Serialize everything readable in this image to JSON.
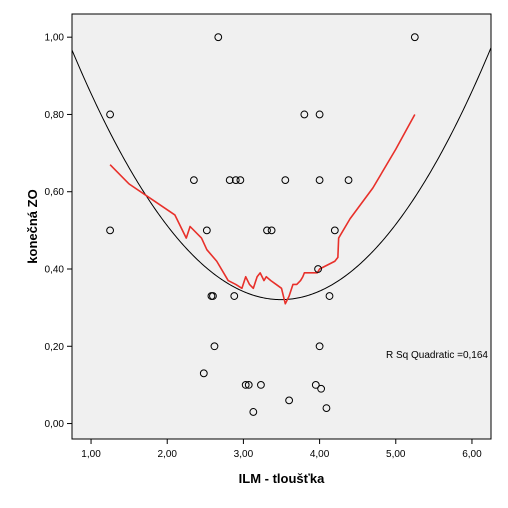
{
  "chart_data": {
    "type": "scatter",
    "xlabel": "ILM - tloušťka",
    "ylabel": "konečná ZO",
    "xlim": [
      0.75,
      6.25
    ],
    "ylim": [
      -0.04,
      1.06
    ],
    "x_ticks": [
      1,
      2,
      3,
      4,
      5,
      6
    ],
    "y_ticks": [
      0,
      0.2,
      0.4,
      0.6,
      0.8,
      1.0
    ],
    "x_tick_labels": [
      "1,00",
      "2,00",
      "3,00",
      "4,00",
      "5,00",
      "6,00"
    ],
    "y_tick_labels": [
      "0,00",
      "0,20",
      "0,40",
      "0,60",
      "0,80",
      "1,00"
    ],
    "annotation": "R Sq Quadratic =0,164",
    "grid": false,
    "background_color": "#f0f0f0",
    "points": [
      [
        1.25,
        0.8
      ],
      [
        1.25,
        0.5
      ],
      [
        2.35,
        0.63
      ],
      [
        2.48,
        0.13
      ],
      [
        2.52,
        0.5
      ],
      [
        2.58,
        0.33
      ],
      [
        2.6,
        0.33
      ],
      [
        2.62,
        0.2
      ],
      [
        2.67,
        1.0
      ],
      [
        2.82,
        0.63
      ],
      [
        2.88,
        0.33
      ],
      [
        2.9,
        0.63
      ],
      [
        2.96,
        0.63
      ],
      [
        3.03,
        0.1
      ],
      [
        3.07,
        0.1
      ],
      [
        3.13,
        0.03
      ],
      [
        3.23,
        0.1
      ],
      [
        3.31,
        0.5
      ],
      [
        3.37,
        0.5
      ],
      [
        3.55,
        0.63
      ],
      [
        3.6,
        0.06
      ],
      [
        3.8,
        0.8
      ],
      [
        3.95,
        0.1
      ],
      [
        3.98,
        0.4
      ],
      [
        4.0,
        0.2
      ],
      [
        4.0,
        0.63
      ],
      [
        4.0,
        0.8
      ],
      [
        4.02,
        0.09
      ],
      [
        4.09,
        0.04
      ],
      [
        4.13,
        0.33
      ],
      [
        4.2,
        0.5
      ],
      [
        4.38,
        0.63
      ],
      [
        5.25,
        1.0
      ]
    ],
    "series": [
      {
        "type": "quadratic_fit",
        "color": "#000000",
        "coefficients": [
          1.368,
          -0.5995,
          0.0858
        ]
      },
      {
        "type": "loess",
        "color": "#e8302a",
        "x": [
          1.25,
          1.5,
          1.8,
          2.1,
          2.25,
          2.3,
          2.45,
          2.52,
          2.65,
          2.8,
          2.9,
          2.98,
          3.03,
          3.08,
          3.13,
          3.18,
          3.22,
          3.27,
          3.3,
          3.36,
          3.43,
          3.5,
          3.55,
          3.6,
          3.65,
          3.7,
          3.75,
          3.78,
          3.8,
          3.85,
          3.92,
          3.97,
          4.0,
          4.1,
          4.2,
          4.24,
          4.25,
          4.4,
          4.7,
          5.0,
          5.25
        ],
        "y": [
          0.67,
          0.62,
          0.58,
          0.54,
          0.48,
          0.51,
          0.48,
          0.45,
          0.42,
          0.37,
          0.36,
          0.35,
          0.38,
          0.36,
          0.35,
          0.38,
          0.39,
          0.37,
          0.38,
          0.37,
          0.36,
          0.35,
          0.31,
          0.33,
          0.36,
          0.36,
          0.37,
          0.38,
          0.39,
          0.39,
          0.39,
          0.39,
          0.4,
          0.41,
          0.42,
          0.43,
          0.48,
          0.53,
          0.61,
          0.71,
          0.8
        ]
      }
    ]
  }
}
